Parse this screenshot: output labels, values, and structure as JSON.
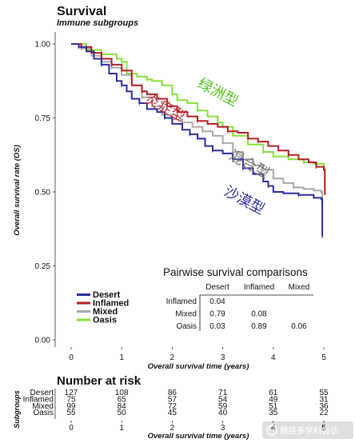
{
  "figure": {
    "title": "Survival",
    "subtitle": "Immune subgroups"
  },
  "colors": {
    "Desert": "#2b2e9e",
    "Inflamed": "#b21e24",
    "Mixed": "#a9a9a9",
    "Oasis": "#86e03a"
  },
  "annotations": [
    {
      "text": "绿洲型",
      "color": "#55c61f"
    },
    {
      "text": "炎症型",
      "color": "#c22a30"
    },
    {
      "text": "混合型",
      "color": "#777777"
    },
    {
      "text": "沙漠型",
      "color": "#2b2e9e"
    }
  ],
  "chart_data": {
    "type": "line",
    "title": "Survival",
    "subtitle": "Immune subgroups",
    "xlabel": "Overall survival time (years)",
    "ylabel": "Overall survival rate (OS)",
    "xlim": [
      0,
      5
    ],
    "ylim": [
      0,
      1
    ],
    "x_ticks": [
      "0",
      "1",
      "2",
      "3",
      "4",
      "5"
    ],
    "y_ticks": [
      "0.00",
      "0.25",
      "0.50",
      "0.75",
      "1.00"
    ],
    "grid": false,
    "legend_position": "bottom-left",
    "series": [
      {
        "name": "Desert",
        "color": "#2b2e9e",
        "points": [
          [
            0,
            1.0
          ],
          [
            0.15,
            0.99
          ],
          [
            0.3,
            0.975
          ],
          [
            0.45,
            0.95
          ],
          [
            0.6,
            0.93
          ],
          [
            0.75,
            0.9
          ],
          [
            0.9,
            0.875
          ],
          [
            1.0,
            0.86
          ],
          [
            1.1,
            0.84
          ],
          [
            1.2,
            0.815
          ],
          [
            1.35,
            0.8
          ],
          [
            1.5,
            0.78
          ],
          [
            1.7,
            0.77
          ],
          [
            1.85,
            0.75
          ],
          [
            2.0,
            0.73
          ],
          [
            2.2,
            0.71
          ],
          [
            2.35,
            0.695
          ],
          [
            2.5,
            0.68
          ],
          [
            2.65,
            0.655
          ],
          [
            2.8,
            0.64
          ],
          [
            3.0,
            0.63
          ],
          [
            3.2,
            0.61
          ],
          [
            3.4,
            0.58
          ],
          [
            3.6,
            0.56
          ],
          [
            3.8,
            0.535
          ],
          [
            3.9,
            0.52
          ],
          [
            4.0,
            0.5
          ],
          [
            4.2,
            0.495
          ],
          [
            4.5,
            0.49
          ],
          [
            4.8,
            0.48
          ],
          [
            4.95,
            0.475
          ],
          [
            4.97,
            0.35
          ]
        ]
      },
      {
        "name": "Inflamed",
        "color": "#b21e24",
        "points": [
          [
            0,
            1.0
          ],
          [
            0.2,
            0.99
          ],
          [
            0.4,
            0.97
          ],
          [
            0.6,
            0.95
          ],
          [
            0.8,
            0.93
          ],
          [
            1.0,
            0.91
          ],
          [
            1.2,
            0.86
          ],
          [
            1.4,
            0.84
          ],
          [
            1.5,
            0.83
          ],
          [
            1.7,
            0.815
          ],
          [
            1.9,
            0.79
          ],
          [
            2.1,
            0.77
          ],
          [
            2.3,
            0.755
          ],
          [
            2.5,
            0.74
          ],
          [
            2.7,
            0.73
          ],
          [
            2.9,
            0.72
          ],
          [
            3.1,
            0.705
          ],
          [
            3.3,
            0.7
          ],
          [
            3.5,
            0.68
          ],
          [
            3.7,
            0.67
          ],
          [
            3.9,
            0.655
          ],
          [
            4.1,
            0.64
          ],
          [
            4.3,
            0.625
          ],
          [
            4.5,
            0.61
          ],
          [
            4.7,
            0.6
          ],
          [
            4.85,
            0.585
          ],
          [
            5.0,
            0.575
          ],
          [
            5.02,
            0.49
          ]
        ]
      },
      {
        "name": "Mixed",
        "color": "#a9a9a9",
        "points": [
          [
            0,
            1.0
          ],
          [
            0.2,
            0.985
          ],
          [
            0.4,
            0.96
          ],
          [
            0.6,
            0.94
          ],
          [
            0.8,
            0.92
          ],
          [
            1.0,
            0.895
          ],
          [
            1.2,
            0.86
          ],
          [
            1.4,
            0.82
          ],
          [
            1.6,
            0.79
          ],
          [
            1.8,
            0.76
          ],
          [
            2.0,
            0.745
          ],
          [
            2.2,
            0.735
          ],
          [
            2.4,
            0.72
          ],
          [
            2.6,
            0.705
          ],
          [
            2.8,
            0.69
          ],
          [
            3.0,
            0.665
          ],
          [
            3.2,
            0.635
          ],
          [
            3.4,
            0.61
          ],
          [
            3.6,
            0.59
          ],
          [
            3.8,
            0.575
          ],
          [
            4.0,
            0.545
          ],
          [
            4.2,
            0.53
          ],
          [
            4.4,
            0.515
          ],
          [
            4.6,
            0.51
          ],
          [
            4.8,
            0.505
          ],
          [
            4.95,
            0.5
          ],
          [
            4.97,
            0.455
          ]
        ]
      },
      {
        "name": "Oasis",
        "color": "#86e03a",
        "points": [
          [
            0,
            1.0
          ],
          [
            0.3,
            0.98
          ],
          [
            0.6,
            0.965
          ],
          [
            0.9,
            0.95
          ],
          [
            1.0,
            0.94
          ],
          [
            1.1,
            0.9
          ],
          [
            1.3,
            0.89
          ],
          [
            1.5,
            0.88
          ],
          [
            1.6,
            0.875
          ],
          [
            1.8,
            0.86
          ],
          [
            2.0,
            0.83
          ],
          [
            2.1,
            0.81
          ],
          [
            2.3,
            0.8
          ],
          [
            2.5,
            0.775
          ],
          [
            2.7,
            0.755
          ],
          [
            2.9,
            0.735
          ],
          [
            3.0,
            0.72
          ],
          [
            3.2,
            0.69
          ],
          [
            3.5,
            0.66
          ],
          [
            3.8,
            0.635
          ],
          [
            4.0,
            0.62
          ],
          [
            4.3,
            0.61
          ],
          [
            4.6,
            0.6
          ],
          [
            4.8,
            0.595
          ],
          [
            5.0,
            0.58
          ],
          [
            5.02,
            0.5
          ]
        ]
      }
    ],
    "pairwise": {
      "title": "Pairwise survival comparisons",
      "columns": [
        "Desert",
        "Inflamed",
        "Mixed"
      ],
      "rows": [
        {
          "label": "Inflamed",
          "values": [
            "0.04",
            "",
            ""
          ]
        },
        {
          "label": "Mixed",
          "values": [
            "0.79",
            "0.08",
            ""
          ]
        },
        {
          "label": "Oasis",
          "values": [
            "0.03",
            "0.89",
            "0.06"
          ]
        }
      ]
    },
    "risk_table": {
      "title": "Number at risk",
      "ylabel": "Subgroups",
      "xlabel": "Overall survival time (years)",
      "x_ticks": [
        "0",
        "1",
        "2",
        "3",
        "4",
        "5"
      ],
      "rows": [
        {
          "label": "Desert",
          "values": [
            127,
            108,
            86,
            71,
            61,
            55
          ]
        },
        {
          "label": "Inflamed",
          "values": [
            75,
            65,
            57,
            54,
            49,
            31
          ]
        },
        {
          "label": "Mixed",
          "values": [
            99,
            84,
            72,
            59,
            51,
            36
          ]
        },
        {
          "label": "Oasis",
          "values": [
            55,
            50,
            45,
            40,
            35,
            22
          ]
        }
      ]
    }
  },
  "watermark": {
    "text": "肺癌多学科会诊"
  }
}
